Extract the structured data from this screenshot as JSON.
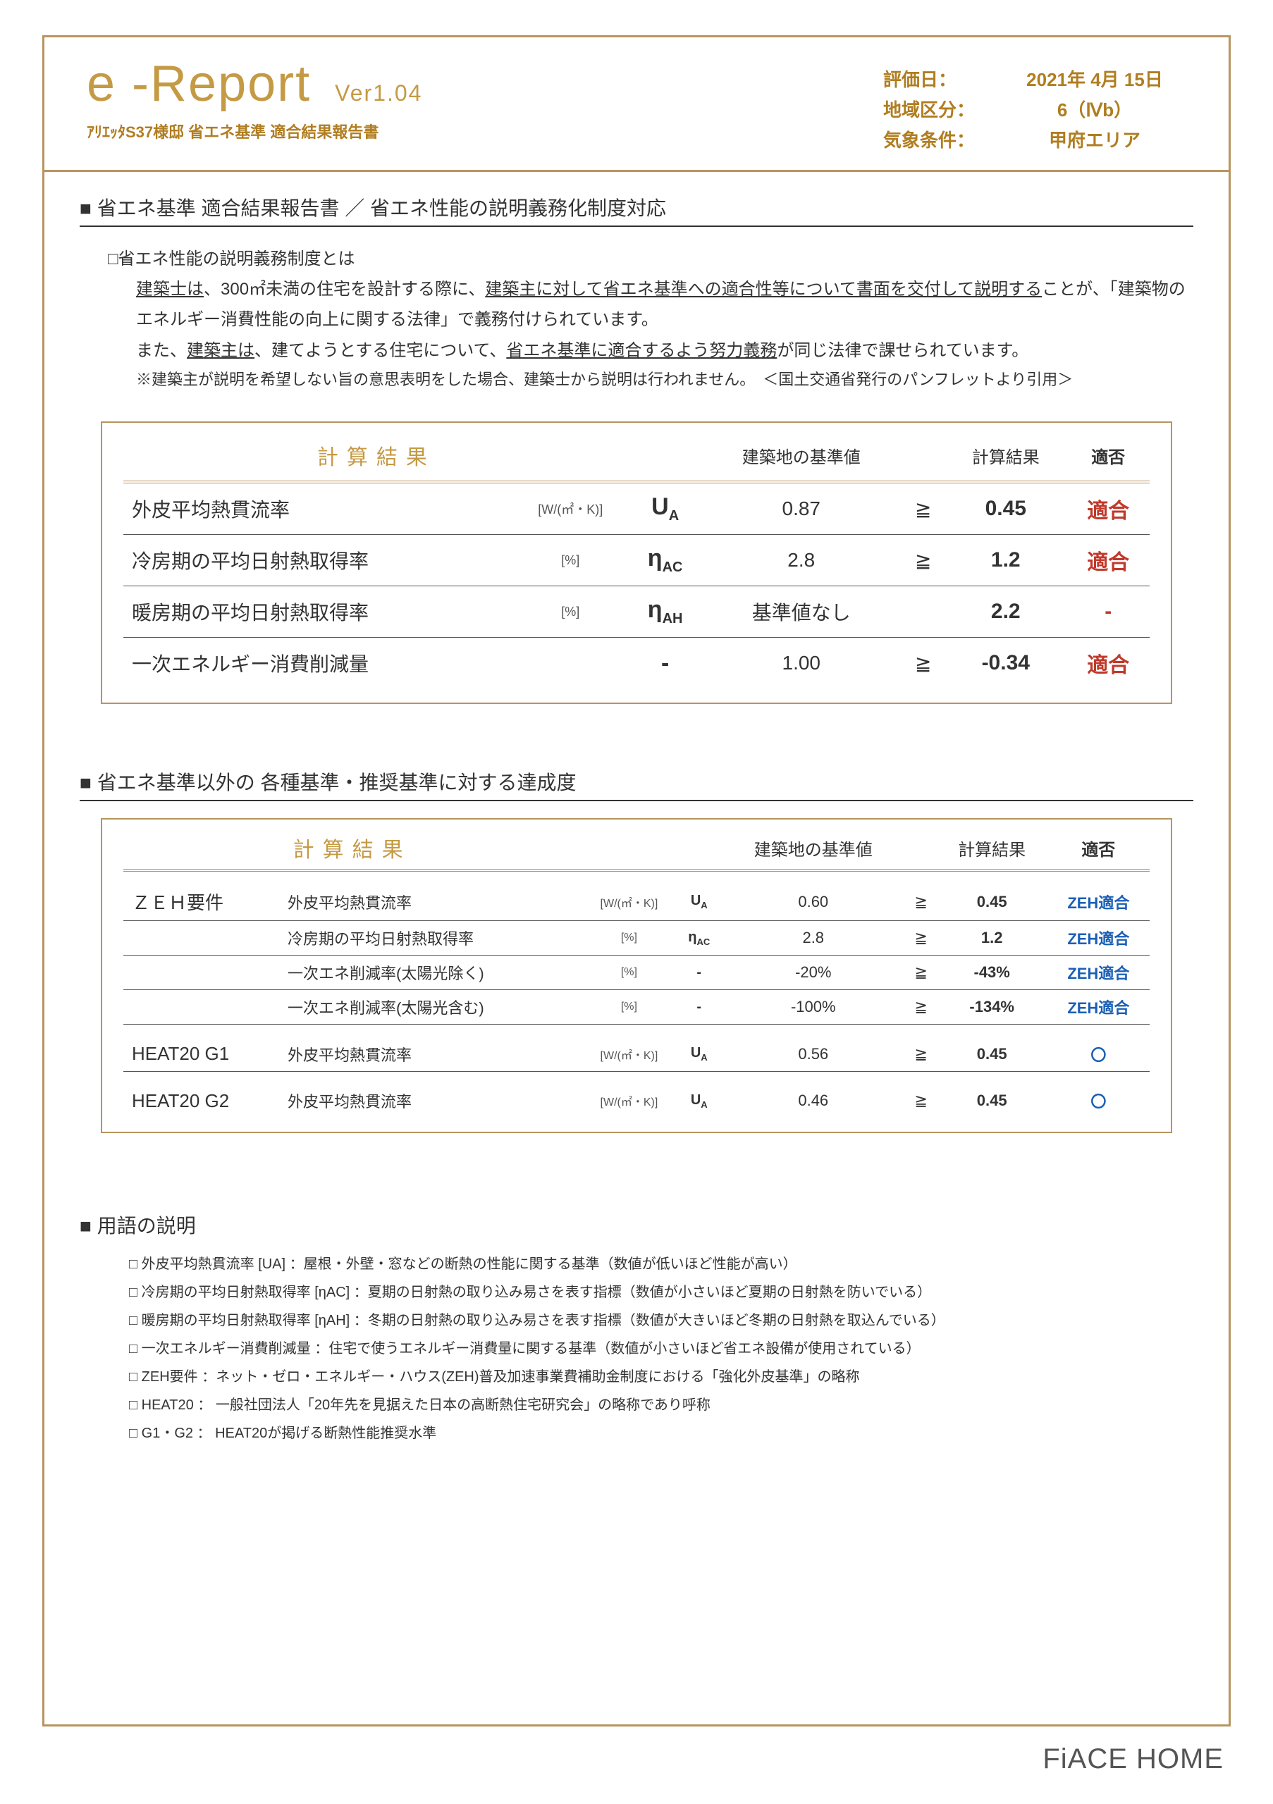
{
  "header": {
    "title_main": "e -Report",
    "title_ver": "Ver1.04",
    "subtitle": "ｱﾘｴｯﾀS37様邸 省エネ基準 適合結果報告書",
    "meta": [
      {
        "label": "評価日：",
        "value": "2021年 4月 15日"
      },
      {
        "label": "地域区分：",
        "value": "6（Ⅳb）"
      },
      {
        "label": "気象条件：",
        "value": "甲府エリア"
      }
    ]
  },
  "section1": {
    "heading": "■ 省エネ基準 適合結果報告書 ／ 省エネ性能の説明義務化制度対応",
    "explain_title": "□省エネ性能の説明義務制度とは",
    "explain_lines": [
      "建築士は、300㎡未満の住宅を設計する際に、建築主に対して省エネ基準への適合性等について書面を交付して説明することが、「建築物のエネルギー消費性能の向上に関する法律」で義務付けられています。",
      "また、建築主は、建てようとする住宅について、省エネ基準に適合するよう努力義務が同じ法律で課せられています。",
      "※建築主が説明を希望しない旨の意思表明をした場合、建築士から説明は行われません。　＜国土交通省発行のパンフレットより引用＞"
    ]
  },
  "table1": {
    "head_calc": "計算結果",
    "head_std": "建築地の基準値",
    "head_res": "計算結果",
    "head_pass": "適否",
    "rows": [
      {
        "name": "外皮平均熱貫流率",
        "unit": "[W/(㎡・K)]",
        "sym": "U",
        "sub": "A",
        "std": "0.87",
        "op": "≧",
        "res": "0.45",
        "pass": "適合",
        "pass_class": "red"
      },
      {
        "name": "冷房期の平均日射熱取得率",
        "unit": "[%]",
        "sym": "η",
        "sub": "AC",
        "std": "2.8",
        "op": "≧",
        "res": "1.2",
        "pass": "適合",
        "pass_class": "red"
      },
      {
        "name": "暖房期の平均日射熱取得率",
        "unit": "[%]",
        "sym": "η",
        "sub": "AH",
        "std": "基準値なし",
        "op": "",
        "res": "2.2",
        "pass": "-",
        "pass_class": "red"
      },
      {
        "name": "一次エネルギー消費削減量",
        "unit": "",
        "sym": "-",
        "sub": "",
        "std": "1.00",
        "op": "≧",
        "res": "-0.34",
        "pass": "適合",
        "pass_class": "red"
      }
    ]
  },
  "section2": {
    "heading": "■ 省エネ基準以外の 各種基準・推奨基準に対する達成度"
  },
  "table2": {
    "head_calc": "計算結果",
    "head_std": "建築地の基準値",
    "head_res": "計算結果",
    "head_pass": "適否",
    "groups": [
      {
        "cat": "ＺＥＨ要件",
        "rows": [
          {
            "name": "外皮平均熱貫流率",
            "unit": "[W/(㎡・K)]",
            "sym": "U",
            "sub": "A",
            "std": "0.60",
            "op": "≧",
            "res": "0.45",
            "pass": "ZEH適合",
            "pass_class": "blue"
          },
          {
            "name": "冷房期の平均日射熱取得率",
            "unit": "[%]",
            "sym": "η",
            "sub": "AC",
            "std": "2.8",
            "op": "≧",
            "res": "1.2",
            "pass": "ZEH適合",
            "pass_class": "blue"
          },
          {
            "name": "一次エネ削減率(太陽光除く)",
            "unit": "[%]",
            "sym": "-",
            "sub": "",
            "std": "-20%",
            "op": "≧",
            "res": "-43%",
            "pass": "ZEH適合",
            "pass_class": "blue"
          },
          {
            "name": "一次エネ削減率(太陽光含む)",
            "unit": "[%]",
            "sym": "-",
            "sub": "",
            "std": "-100%",
            "op": "≧",
            "res": "-134%",
            "pass": "ZEH適合",
            "pass_class": "blue"
          }
        ]
      },
      {
        "cat": "HEAT20 G1",
        "rows": [
          {
            "name": "外皮平均熱貫流率",
            "unit": "[W/(㎡・K)]",
            "sym": "U",
            "sub": "A",
            "std": "0.56",
            "op": "≧",
            "res": "0.45",
            "pass": "〇",
            "pass_class": "blue"
          }
        ]
      },
      {
        "cat": "HEAT20 G2",
        "rows": [
          {
            "name": "外皮平均熱貫流率",
            "unit": "[W/(㎡・K)]",
            "sym": "U",
            "sub": "A",
            "std": "0.46",
            "op": "≧",
            "res": "0.45",
            "pass": "〇",
            "pass_class": "blue"
          }
        ]
      }
    ]
  },
  "glossary": {
    "heading": "■ 用語の説明",
    "items": [
      "外皮平均熱貫流率 [UA] ：屋根・外壁・窓などの断熱の性能に関する基準（数値が低いほど性能が高い）",
      "冷房期の平均日射熱取得率 [ηAC] ：夏期の日射熱の取り込み易さを表す指標（数値が小さいほど夏期の日射熱を防いでいる）",
      "暖房期の平均日射熱取得率 [ηAH] ：冬期の日射熱の取り込み易さを表す指標（数値が大きいほど冬期の日射熱を取込んでいる）",
      "一次エネルギー消費削減量 ：住宅で使うエネルギー消費量に関する基準（数値が小さいほど省エネ設備が使用されている）",
      "ZEH要件 ：ネット・ゼロ・エネルギー・ハウス(ZEH)普及加速事業費補助金制度における「強化外皮基準」の略称",
      "HEAT20 ： 一般社団法人「20年先を見据えた日本の高断熱住宅研究会」の略称であり呼称",
      "G1・G2 ： HEAT20が掲げる断熱性能推奨水準"
    ]
  },
  "footer": {
    "brand": "FiACE HOME"
  },
  "colors": {
    "gold": "#b8945e",
    "gold_text": "#c59a45",
    "brown": "#b07d20",
    "red": "#c0392b",
    "blue": "#1a5fb4"
  }
}
